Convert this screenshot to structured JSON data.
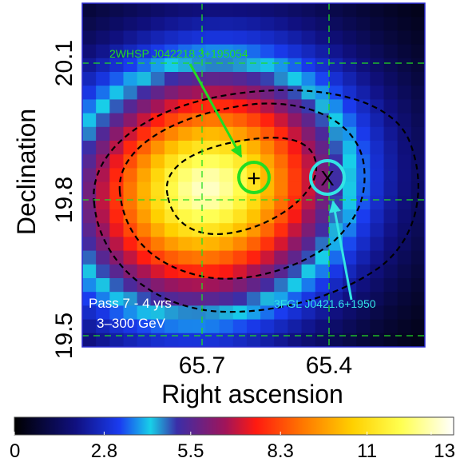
{
  "chart_data": {
    "type": "heatmap",
    "title": "",
    "xlabel": "Right ascension",
    "ylabel": "Declination",
    "x_ticks": [
      "65.7",
      "65.4"
    ],
    "x_tick_values": [
      65.7,
      65.4
    ],
    "y_ticks": [
      "20.1",
      "19.8",
      "19.5"
    ],
    "y_tick_values": [
      20.1,
      19.8,
      19.5
    ],
    "x_range": [
      65.95,
      65.15
    ],
    "y_range": [
      19.46,
      20.22
    ],
    "x_axis_inverted": true,
    "grid_lines": {
      "ra": [
        65.7,
        65.4
      ],
      "dec": [
        20.1,
        19.8,
        19.5
      ],
      "color": "#22dd22",
      "style": "dashed"
    },
    "colorbar": {
      "ticks": [
        "0",
        "2.8",
        "5.5",
        "8.3",
        "11",
        "13"
      ],
      "min": 0,
      "max": 13.7,
      "stops": [
        {
          "v": 0.0,
          "c": "#000000"
        },
        {
          "v": 0.14,
          "c": "#101080"
        },
        {
          "v": 0.24,
          "c": "#1a3cf0"
        },
        {
          "v": 0.31,
          "c": "#18d0e8"
        },
        {
          "v": 0.37,
          "c": "#3a2ea8"
        },
        {
          "v": 0.48,
          "c": "#a0145a"
        },
        {
          "v": 0.55,
          "c": "#ff1a10"
        },
        {
          "v": 0.66,
          "c": "#ff7a00"
        },
        {
          "v": 0.77,
          "c": "#ffd000"
        },
        {
          "v": 0.88,
          "c": "#ffff50"
        },
        {
          "v": 1.0,
          "c": "#ffffff"
        }
      ]
    },
    "peak": {
      "ra": 65.66,
      "dec": 19.81,
      "value": 13.2
    },
    "sources": [
      {
        "name": "2WHSP J042218.3+195054",
        "ra": 65.576,
        "dec": 19.848,
        "marker": "+",
        "color": "#22dd22"
      },
      {
        "name": "3FGL J0421.6+1950",
        "ra": 65.395,
        "dec": 19.848,
        "marker": "X",
        "color": "#33e5e5"
      }
    ],
    "annotations": {
      "pass": "Pass 7 - 4 yrs",
      "energy": "3–300 GeV"
    }
  }
}
